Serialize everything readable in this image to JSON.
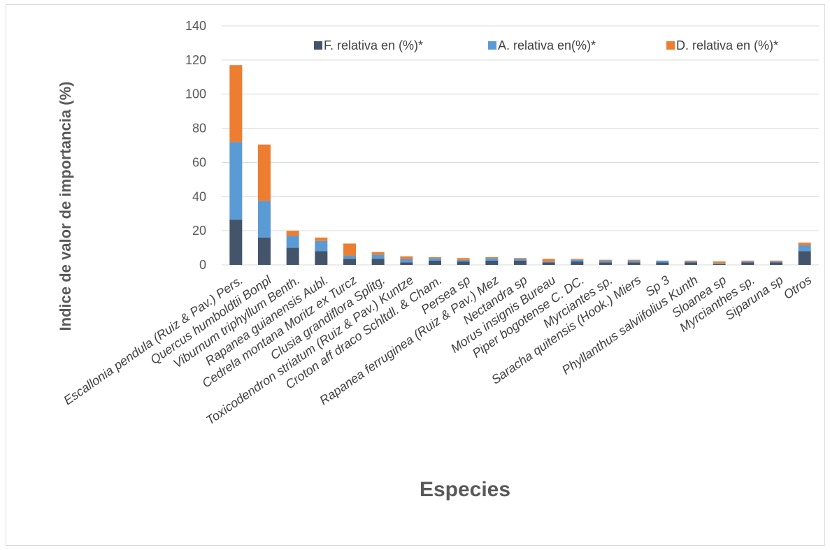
{
  "chart_data": {
    "type": "bar",
    "stacked": true,
    "title": "",
    "xlabel": "Especies",
    "ylabel": "Indice de valor de importancia (%)",
    "ylim": [
      0,
      140
    ],
    "yticks": [
      0,
      20,
      40,
      60,
      80,
      100,
      120,
      140
    ],
    "grid": true,
    "legend_position": "top-right",
    "categories": [
      "Escallonia pendula (Ruiz & Pav.) Pers.",
      "Quercus humboldtii Bonpl",
      "Viburnum triphyllum Benth.",
      "Rapanea guianensis Aubl.",
      "Cedrela montana Moritz ex Turcz",
      "Clusia grandiflora Splitg.",
      "Toxicodendron striatum (Ruiz & Pav.) Kuntze",
      "Croton aff draco Schltdl. & Cham.",
      "Persea sp",
      "Rapanea ferruginea (Ruiz & Pav.) Mez",
      "Nectandra sp",
      "Morus insignis Bureau",
      "Piper bogotense C. DC.",
      "Myrciantes sp.",
      "Saracha quitensis (Hook.) Miers",
      "Sp 3",
      "Phyllanthus salviifolius Kunth",
      "Sloanea sp",
      "Myrcianthes sp.",
      "Siparuna sp",
      "Otros"
    ],
    "series": [
      {
        "name": "F. relativa en (%)*",
        "color": "#44546a",
        "values": [
          26.5,
          16.0,
          10.0,
          8.0,
          3.5,
          3.5,
          1.5,
          2.5,
          2.0,
          2.5,
          2.5,
          1.5,
          2.0,
          1.5,
          1.5,
          1.5,
          1.5,
          0.5,
          1.5,
          1.5,
          8.0
        ]
      },
      {
        "name": "A. relativa en(%)*",
        "color": "#5b9bd5",
        "values": [
          45.5,
          21.5,
          7.0,
          6.0,
          2.0,
          2.5,
          2.0,
          1.5,
          1.0,
          1.5,
          1.0,
          0.5,
          1.0,
          1.0,
          1.0,
          1.0,
          0.5,
          0.5,
          0.5,
          0.5,
          3.5
        ]
      },
      {
        "name": "D. relativa en (%)*",
        "color": "#ed7d31",
        "values": [
          45.0,
          33.0,
          3.0,
          2.0,
          7.0,
          1.5,
          1.5,
          0.5,
          1.0,
          0.5,
          0.5,
          1.5,
          0.5,
          0.5,
          0.5,
          0.0,
          0.5,
          1.0,
          0.5,
          0.5,
          1.5
        ]
      }
    ]
  }
}
